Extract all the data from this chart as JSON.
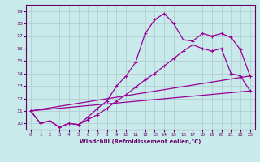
{
  "xlabel": "Windchill (Refroidissement éolien,°C)",
  "bg_color": "#c8eaea",
  "line_color": "#990099",
  "grid_color": "#b0c8c8",
  "xlim": [
    -0.5,
    23.5
  ],
  "ylim": [
    9.5,
    19.5
  ],
  "xticks": [
    0,
    1,
    2,
    3,
    4,
    5,
    6,
    7,
    8,
    9,
    10,
    11,
    12,
    13,
    14,
    15,
    16,
    17,
    18,
    19,
    20,
    21,
    22,
    23
  ],
  "yticks": [
    10,
    11,
    12,
    13,
    14,
    15,
    16,
    17,
    18,
    19
  ],
  "line1_x": [
    0,
    1,
    2,
    3,
    4,
    5,
    6,
    7,
    8,
    9,
    10,
    11,
    12,
    13,
    14,
    15,
    16,
    17,
    18,
    19,
    20,
    21,
    22,
    23
  ],
  "line1_y": [
    11.0,
    10.0,
    10.2,
    9.7,
    10.0,
    9.9,
    10.5,
    11.2,
    11.8,
    13.0,
    13.8,
    14.9,
    17.2,
    18.3,
    18.8,
    18.0,
    16.7,
    16.6,
    17.2,
    17.0,
    17.2,
    16.9,
    15.9,
    13.8
  ],
  "line2_x": [
    0,
    1,
    2,
    3,
    4,
    5,
    6,
    7,
    8,
    9,
    10,
    11,
    12,
    13,
    14,
    15,
    16,
    17,
    18,
    19,
    20,
    21,
    22,
    23
  ],
  "line2_y": [
    11.0,
    10.0,
    10.2,
    9.7,
    10.0,
    9.9,
    10.3,
    10.7,
    11.2,
    11.8,
    12.3,
    12.9,
    13.5,
    14.0,
    14.6,
    15.2,
    15.8,
    16.3,
    16.0,
    15.8,
    16.0,
    14.0,
    13.8,
    12.6
  ],
  "line3_x": [
    0,
    23
  ],
  "line3_y": [
    11.0,
    12.6
  ],
  "line4_x": [
    0,
    23
  ],
  "line4_y": [
    11.0,
    13.8
  ]
}
